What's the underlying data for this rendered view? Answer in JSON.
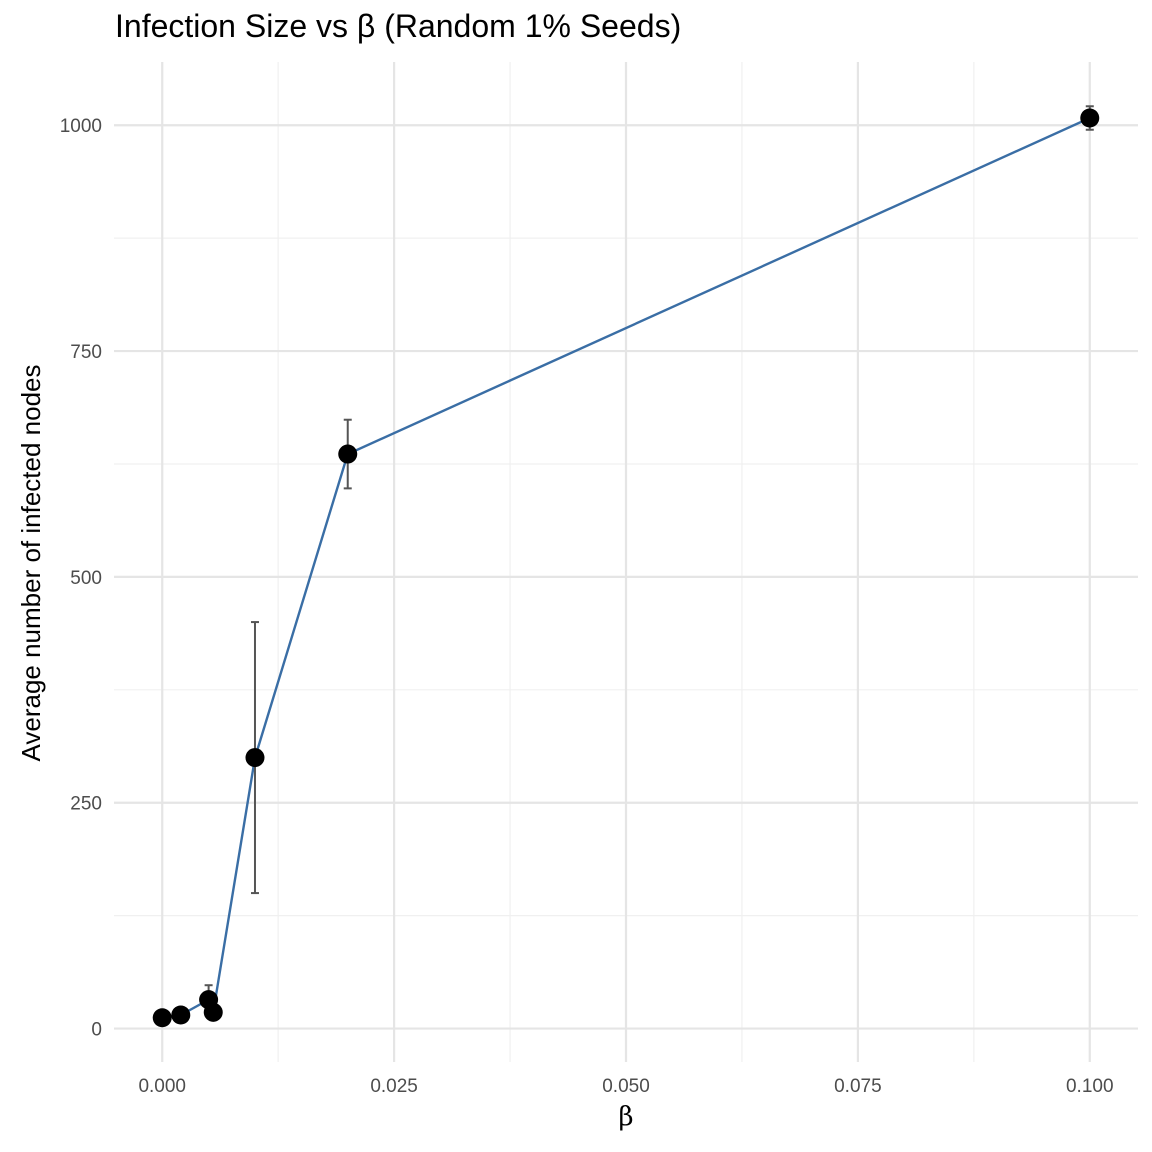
{
  "chart_data": {
    "type": "scatter",
    "title": "Infection Size vs β (Random 1% Seeds)",
    "xlabel": "β",
    "ylabel": "Average number of infected nodes",
    "xlim": [
      -0.0052,
      0.1052
    ],
    "ylim": [
      -37,
      1070
    ],
    "x_ticks": [
      0.0,
      0.025,
      0.05,
      0.075,
      0.1
    ],
    "x_tick_labels": [
      "0.000",
      "0.025",
      "0.050",
      "0.075",
      "0.100"
    ],
    "x_minor": [
      0.0125,
      0.0375,
      0.0625,
      0.0875
    ],
    "y_ticks": [
      0,
      250,
      500,
      750,
      1000
    ],
    "y_tick_labels": [
      "0",
      "250",
      "500",
      "750",
      "1000"
    ],
    "y_minor": [
      125,
      375,
      625,
      875
    ],
    "grid": true,
    "line_series": {
      "x": [
        0.0,
        0.002,
        0.005,
        0.0055,
        0.01,
        0.02,
        0.1
      ],
      "y": [
        12,
        15,
        32,
        18,
        300,
        636,
        1008
      ]
    },
    "points": [
      {
        "x": 0.0,
        "y": 12,
        "err_low": 12,
        "err_high": 12
      },
      {
        "x": 0.002,
        "y": 15,
        "err_low": 15,
        "err_high": 15
      },
      {
        "x": 0.005,
        "y": 32,
        "err_low": 18,
        "err_high": 48
      },
      {
        "x": 0.0055,
        "y": 18,
        "err_low": 18,
        "err_high": 18
      },
      {
        "x": 0.01,
        "y": 300,
        "err_low": 150,
        "err_high": 450
      },
      {
        "x": 0.02,
        "y": 636,
        "err_low": 598,
        "err_high": 674
      },
      {
        "x": 0.1,
        "y": 1008,
        "err_low": 995,
        "err_high": 1021
      }
    ],
    "colors": {
      "line": "#3a6ea5",
      "point": "#000000",
      "errorbar": "#555555",
      "grid_major": "#e5e5e5",
      "grid_minor": "#f0f0f0"
    }
  }
}
